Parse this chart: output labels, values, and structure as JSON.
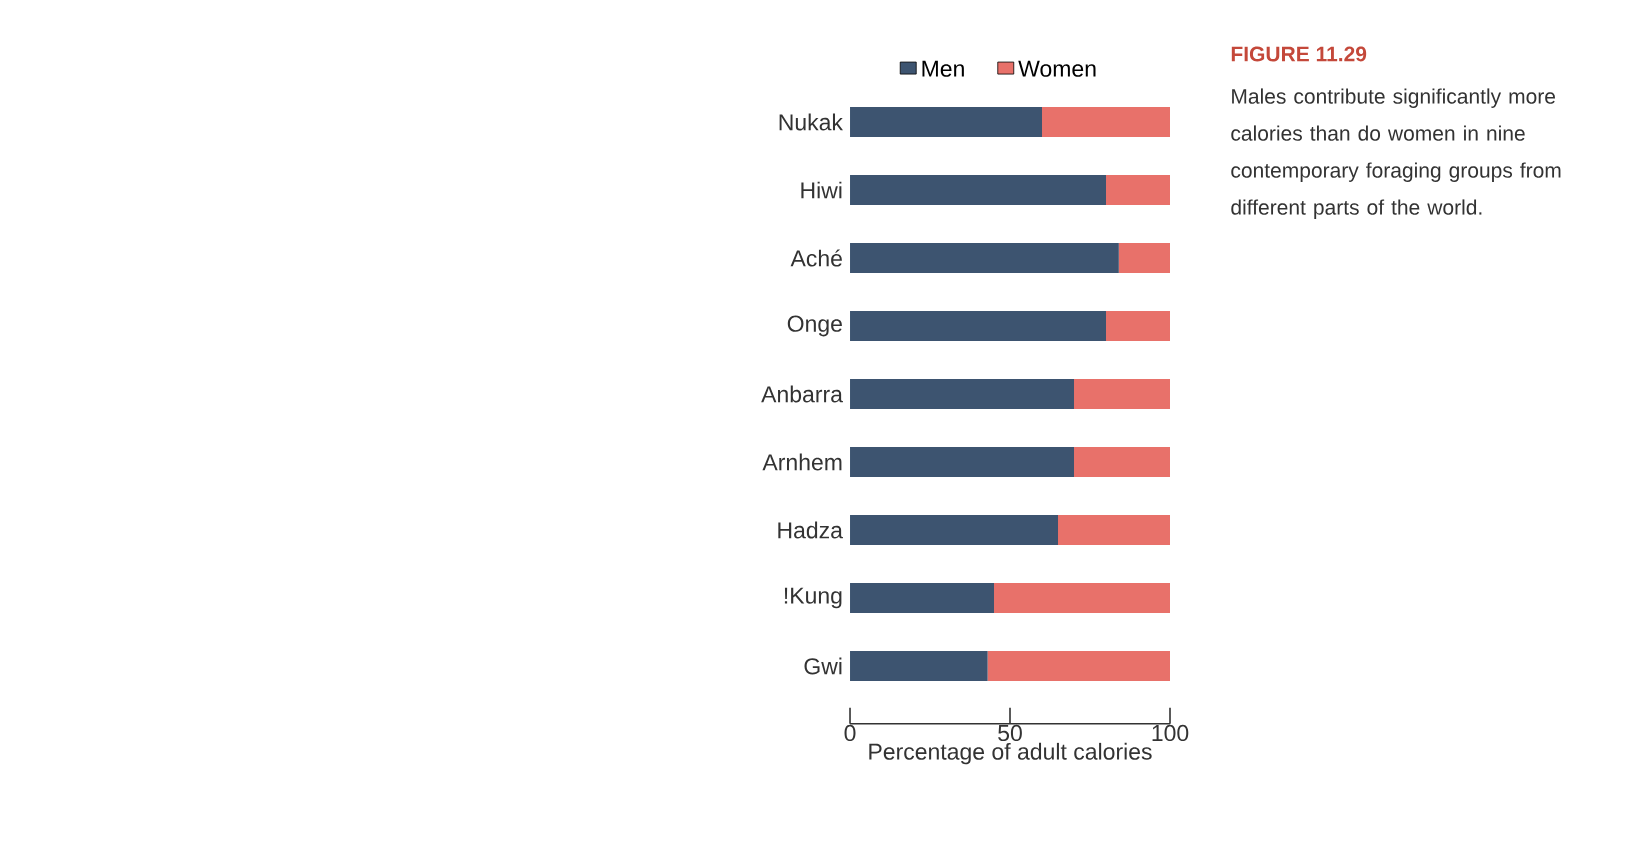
{
  "chart_data": {
    "type": "bar",
    "orientation": "horizontal",
    "stacked": true,
    "title": "FIGURE 11.29",
    "annotations": [
      "Males contribute significantly more calories than do women in nine contemporary foraging groups from different parts of the world."
    ],
    "categories": [
      "Nukak",
      "Hiwi",
      "Aché",
      "Onge",
      "Anbarra",
      "Arnhem",
      "Hadza",
      "!Kung",
      "Gwi"
    ],
    "series": [
      {
        "name": "Men",
        "color": "#3d5470",
        "values": [
          60,
          80,
          84,
          80,
          70,
          70,
          65,
          45,
          43
        ]
      },
      {
        "name": "Women",
        "color": "#e8716a",
        "values": [
          40,
          20,
          16,
          20,
          30,
          30,
          35,
          55,
          57
        ]
      }
    ],
    "xlabel": "Percentage of adult calories",
    "xlim": [
      0,
      100
    ],
    "xticks": [
      0,
      50,
      100
    ],
    "legend": "top"
  }
}
